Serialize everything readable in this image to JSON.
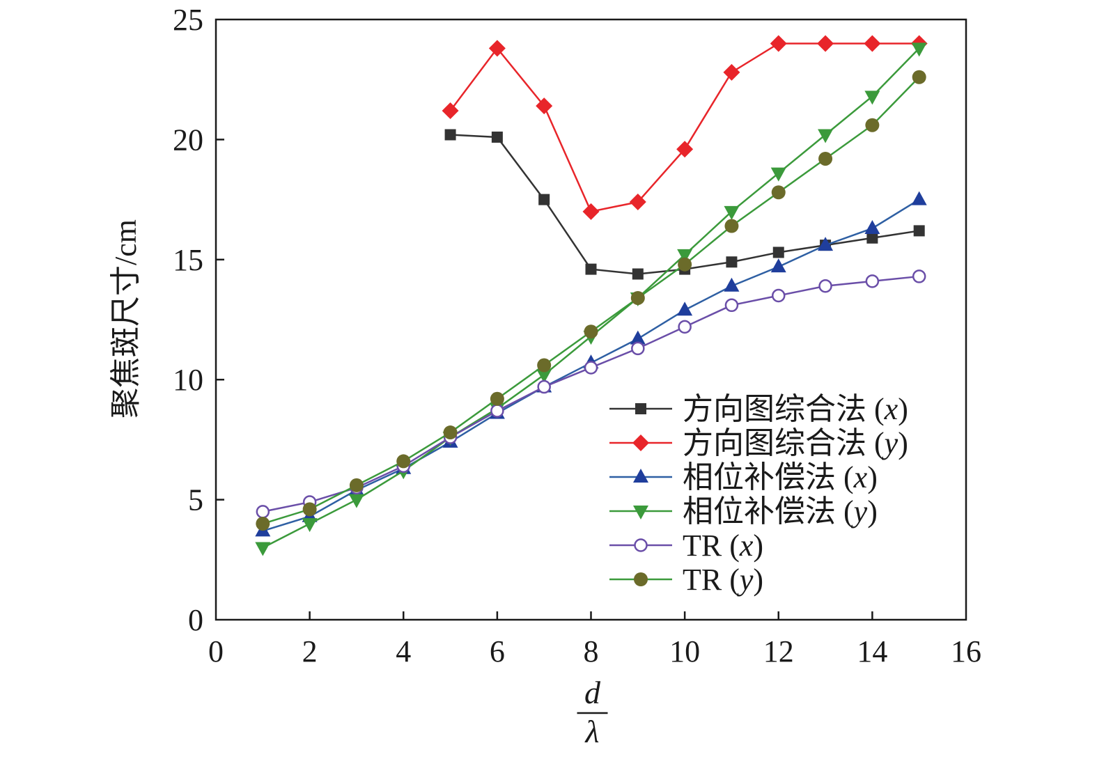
{
  "chart_data": {
    "type": "line",
    "xlabel_numerator": "d",
    "xlabel_denominator": "λ",
    "ylabel": "聚焦斑尺寸/cm",
    "xlim": [
      0,
      16
    ],
    "ylim": [
      0,
      25
    ],
    "xticks": [
      0,
      2,
      4,
      6,
      8,
      10,
      12,
      14,
      16
    ],
    "yticks": [
      0,
      5,
      10,
      15,
      20,
      25
    ],
    "grid": false,
    "legend_placement": "bottom-right",
    "series": [
      {
        "name_main": "方向图综合法 (",
        "name_var": "x",
        "name_end": ")",
        "color": "#333333",
        "marker": "square",
        "x": [
          5,
          6,
          7,
          8,
          9,
          10,
          11,
          12,
          13,
          14,
          15
        ],
        "y": [
          20.2,
          20.1,
          17.5,
          14.6,
          14.4,
          14.6,
          14.9,
          15.3,
          15.6,
          15.9,
          16.2
        ]
      },
      {
        "name_main": "方向图综合法 (",
        "name_var": "y",
        "name_end": ")",
        "color": "#e8252a",
        "marker": "diamond",
        "x": [
          5,
          6,
          7,
          8,
          9,
          10,
          11,
          12,
          13,
          14,
          15
        ],
        "y": [
          21.2,
          23.8,
          21.4,
          17.0,
          17.4,
          19.6,
          22.8,
          24.0,
          24.0,
          24.0,
          24.0
        ]
      },
      {
        "name_main": "相位补偿法 (",
        "name_var": "x",
        "name_end": ")",
        "color": "#2e5fa3",
        "marker": "triangle-up",
        "fill": "#1f3e9c",
        "x": [
          1,
          2,
          3,
          4,
          5,
          6,
          7,
          8,
          9,
          10,
          11,
          12,
          13,
          14,
          15
        ],
        "y": [
          3.7,
          4.3,
          5.4,
          6.3,
          7.4,
          8.6,
          9.7,
          10.7,
          11.7,
          12.9,
          13.9,
          14.7,
          15.6,
          16.3,
          17.5
        ]
      },
      {
        "name_main": "相位补偿法 (",
        "name_var": "y",
        "name_end": ")",
        "color": "#3b9a3b",
        "marker": "triangle-down",
        "x": [
          1,
          2,
          3,
          4,
          5,
          6,
          7,
          8,
          9,
          10,
          11,
          12,
          13,
          14,
          15
        ],
        "y": [
          3.0,
          4.0,
          5.0,
          6.2,
          7.6,
          8.8,
          10.2,
          11.8,
          13.4,
          15.2,
          17.0,
          18.6,
          20.2,
          21.8,
          23.8
        ]
      },
      {
        "name_main": "TR (",
        "name_var": "x",
        "name_end": ")",
        "color": "#6a4ea8",
        "marker": "circle-open",
        "x": [
          1,
          2,
          3,
          4,
          5,
          6,
          7,
          8,
          9,
          10,
          11,
          12,
          13,
          14,
          15
        ],
        "y": [
          4.5,
          4.9,
          5.5,
          6.4,
          7.6,
          8.7,
          9.7,
          10.5,
          11.3,
          12.2,
          13.1,
          13.5,
          13.9,
          14.1,
          14.3
        ]
      },
      {
        "name_main": "TR (",
        "name_var": "y",
        "name_end": ")",
        "color": "#3b9a3b",
        "marker": "circle",
        "fill": "#6b6b2a",
        "x": [
          1,
          2,
          3,
          4,
          5,
          6,
          7,
          8,
          9,
          10,
          11,
          12,
          13,
          14,
          15
        ],
        "y": [
          4.0,
          4.6,
          5.6,
          6.6,
          7.8,
          9.2,
          10.6,
          12.0,
          13.4,
          14.8,
          16.4,
          17.8,
          19.2,
          20.6,
          22.6
        ]
      }
    ]
  }
}
